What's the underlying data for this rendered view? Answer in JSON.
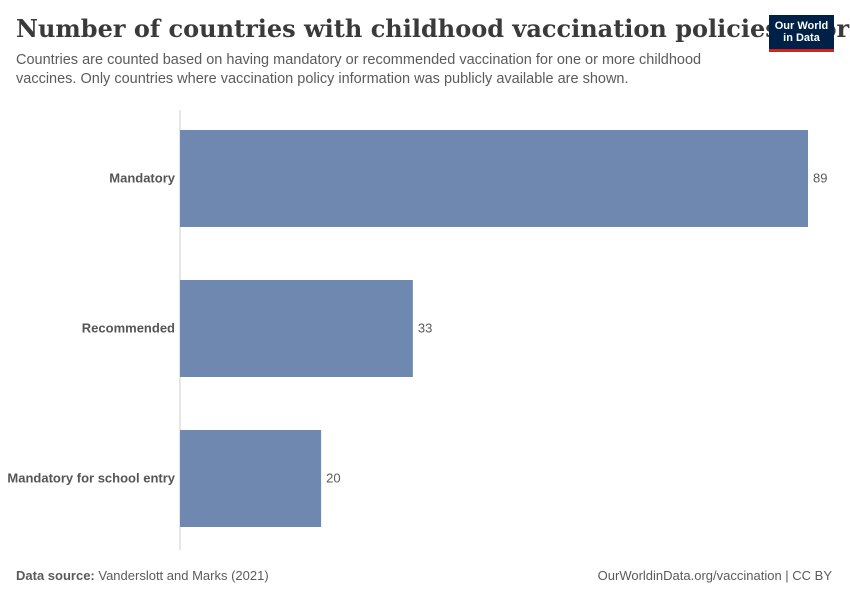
{
  "header": {
    "title": "Number of countries with childhood vaccination policies, World",
    "subtitle": "Countries are counted based on having mandatory or recommended vaccination for one or more childhood vaccines. Only countries where vaccination policy information was publicly available are shown."
  },
  "logo": {
    "line1": "Our World",
    "line2": "in Data"
  },
  "footer": {
    "source_label": "Data source:",
    "source_text": "Vanderslott and Marks (2021)",
    "url_license": "OurWorldinData.org/vaccination | CC BY"
  },
  "colors": {
    "bar": "#6f88b0",
    "axis": "#cccccc"
  },
  "chart_data": {
    "type": "bar",
    "orientation": "horizontal",
    "categories": [
      "Mandatory",
      "Recommended",
      "Mandatory for school entry"
    ],
    "values": [
      89,
      33,
      20
    ],
    "title": "Number of countries with childhood vaccination policies, World",
    "xlabel": "",
    "ylabel": "",
    "xlim": [
      0,
      89
    ],
    "grid": false
  }
}
